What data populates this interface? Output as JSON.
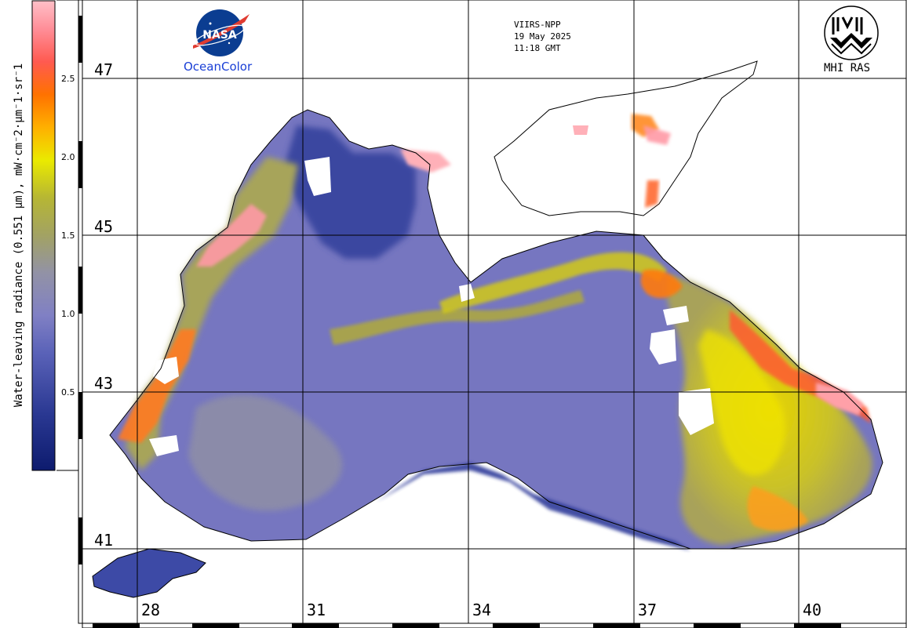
{
  "header": {
    "sensor": "VIIRS-NPP",
    "date": "19 May 2025",
    "time": "11:18 GMT"
  },
  "logos": {
    "nasa_text": "NASA",
    "oceancolor_text": "OceanColor",
    "mhi_text": "MHI RAS"
  },
  "colorbar": {
    "title": "Water-leaving radiance (0.551 μm), mW·cm⁻2·μm⁻1·sr⁻1",
    "title_display": "Water-leaving radiance (0.551 µm), mW·cm⁻2·µm⁻1·sr⁻1",
    "ticks": [
      "0.5",
      "1.0",
      "1.5",
      "2.0",
      "2.5"
    ],
    "tick_values": [
      0.5,
      1.0,
      1.5,
      2.0,
      2.5
    ],
    "min": 0,
    "max": 3.0,
    "colors": [
      "#1a237e",
      "#2f3a9a",
      "#5a62b8",
      "#7c7fc4",
      "#8e8ec0",
      "#9a9a7a",
      "#a6a64a",
      "#b8b830",
      "#d6d61a",
      "#f2ee00",
      "#ffb300",
      "#ff7a00",
      "#ff5a3a",
      "#ff7f8a",
      "#ffb0b8"
    ]
  },
  "map": {
    "latitude_labels": [
      "47",
      "45",
      "43",
      "41"
    ],
    "longitude_labels": [
      "28",
      "31",
      "34",
      "37",
      "40"
    ]
  }
}
